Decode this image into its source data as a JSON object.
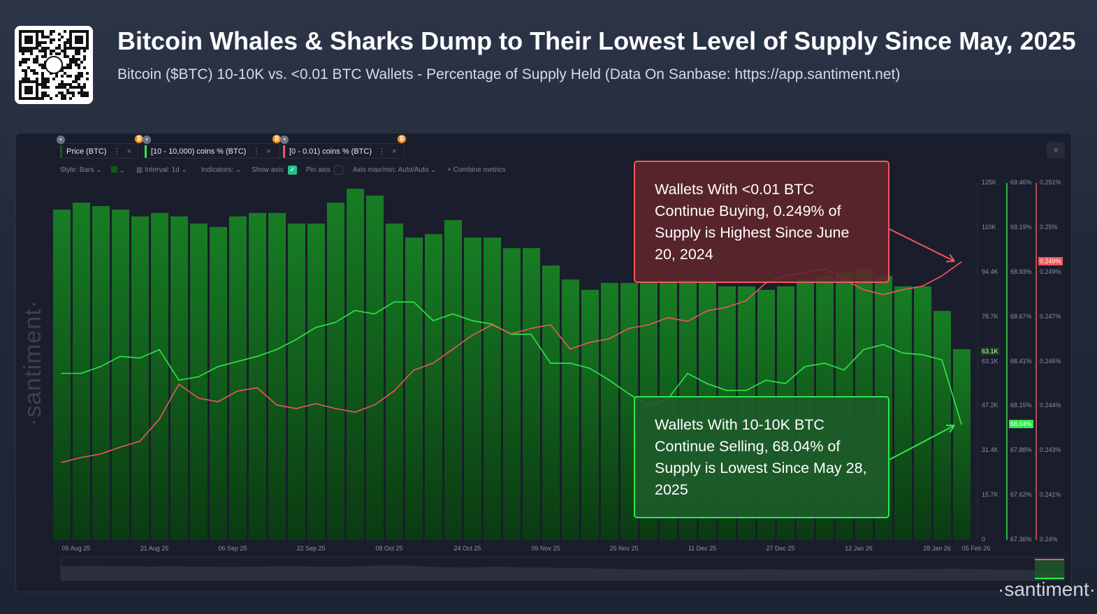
{
  "header": {
    "title": "Bitcoin Whales & Sharks Dump to Their Lowest Level of Supply Since May, 2025",
    "subtitle": "Bitcoin ($BTC) 10-10K vs. <0.01 BTC Wallets - Percentage of Supply Held (Data On Sanbase: https://app.santiment.net)"
  },
  "metric_tabs": [
    {
      "label": "Price (BTC)",
      "color": "#0f5a1a"
    },
    {
      "label": "[10 - 10,000) coins % (BTC)",
      "color": "#2ee84a"
    },
    {
      "label": "[0 - 0.01) coins % (BTC)",
      "color": "#f0585a"
    }
  ],
  "toolbar": {
    "style": "Style: Bars",
    "interval": "Interval: 1d",
    "indicators": "Indicators:",
    "show_axis": "Show axis",
    "show_axis_checked": true,
    "pin_axis": "Pin axis",
    "pin_axis_checked": false,
    "axis_minmax": "Axis max/min: Auto/Auto",
    "combine": "+ Combine metrics"
  },
  "watermark": "·santiment·",
  "watermark_br": "·santiment·",
  "annotations": [
    {
      "text": "Wallets With <0.01 BTC Continue Buying, 0.249% of Supply is Highest Since June 20, 2024",
      "color": "#f0585a"
    },
    {
      "text": "Wallets With 10-10K BTC Continue Selling, 68.04% of Supply is Lowest Since May 28, 2025",
      "color": "#2ee84a"
    }
  ],
  "chart_data": {
    "type": "bar+line",
    "x_ticks": [
      "05 Aug 25",
      "21 Aug 25",
      "06 Sep 25",
      "22 Sep 25",
      "08 Oct 25",
      "24 Oct 25",
      "09 Nov 25",
      "25 Nov 25",
      "11 Dec 25",
      "27 Dec 25",
      "12 Jan 26",
      "28 Jan 26",
      "05 Feb 26"
    ],
    "x_tick_dates": [
      "2025-08-05",
      "2025-08-21",
      "2025-09-06",
      "2025-09-22",
      "2025-10-08",
      "2025-10-24",
      "2025-11-09",
      "2025-11-25",
      "2025-12-11",
      "2025-12-27",
      "2026-01-12",
      "2026-01-28",
      "2026-02-05"
    ],
    "x": [
      "2025-08-02",
      "2025-08-06",
      "2025-08-10",
      "2025-08-14",
      "2025-08-18",
      "2025-08-22",
      "2025-08-26",
      "2025-08-30",
      "2025-09-03",
      "2025-09-07",
      "2025-09-11",
      "2025-09-15",
      "2025-09-19",
      "2025-09-23",
      "2025-09-27",
      "2025-10-01",
      "2025-10-05",
      "2025-10-09",
      "2025-10-13",
      "2025-10-17",
      "2025-10-21",
      "2025-10-25",
      "2025-10-29",
      "2025-11-02",
      "2025-11-06",
      "2025-11-10",
      "2025-11-14",
      "2025-11-18",
      "2025-11-22",
      "2025-11-26",
      "2025-11-30",
      "2025-12-04",
      "2025-12-08",
      "2025-12-12",
      "2025-12-16",
      "2025-12-20",
      "2025-12-24",
      "2025-12-28",
      "2026-01-01",
      "2026-01-05",
      "2026-01-09",
      "2026-01-13",
      "2026-01-17",
      "2026-01-21",
      "2026-01-25",
      "2026-01-29",
      "2026-02-02"
    ],
    "series": [
      {
        "name": "Price (BTC)",
        "type": "bar",
        "axis": "price",
        "color": "#137a22",
        "values": [
          115.7,
          118.1,
          116.9,
          115.7,
          113.3,
          114.5,
          113.3,
          110.8,
          109.6,
          113.3,
          114.5,
          114.5,
          110.8,
          110.8,
          118.1,
          123.0,
          120.6,
          110.8,
          105.9,
          107.1,
          112.0,
          105.9,
          105.9,
          102.2,
          102.2,
          96.1,
          91.2,
          87.6,
          90.0,
          90.0,
          90.0,
          90.0,
          91.2,
          90.0,
          88.8,
          88.8,
          87.6,
          88.8,
          91.2,
          92.5,
          93.7,
          94.9,
          92.5,
          88.8,
          88.8,
          80.2,
          66.8
        ]
      },
      {
        "name": "[10 - 10,000) coins % (BTC)",
        "type": "line",
        "axis": "whales",
        "color": "#2ee84a",
        "values": [
          68.34,
          68.34,
          68.38,
          68.44,
          68.43,
          68.48,
          68.3,
          68.32,
          68.38,
          68.41,
          68.44,
          68.48,
          68.54,
          68.61,
          68.64,
          68.71,
          68.69,
          68.76,
          68.76,
          68.65,
          68.69,
          68.65,
          68.63,
          68.57,
          68.57,
          68.4,
          68.4,
          68.37,
          68.3,
          68.22,
          68.15,
          68.19,
          68.34,
          68.28,
          68.24,
          68.24,
          68.3,
          68.28,
          68.38,
          68.4,
          68.36,
          68.48,
          68.51,
          68.46,
          68.45,
          68.42,
          68.04
        ]
      },
      {
        "name": "[0 - 0.01) coins % (BTC)",
        "type": "line",
        "axis": "shrimp",
        "color": "#f0585a",
        "values": [
          0.24239,
          0.24254,
          0.24265,
          0.24286,
          0.24304,
          0.24372,
          0.2448,
          0.24437,
          0.24426,
          0.24459,
          0.24469,
          0.24416,
          0.24405,
          0.2442,
          0.24405,
          0.24394,
          0.24416,
          0.24459,
          0.24523,
          0.24545,
          0.24588,
          0.24631,
          0.24663,
          0.24635,
          0.24652,
          0.24663,
          0.24588,
          0.24609,
          0.2462,
          0.24652,
          0.24663,
          0.24685,
          0.24674,
          0.24706,
          0.24717,
          0.24738,
          0.24792,
          0.24814,
          0.24825,
          0.24835,
          0.24803,
          0.24771,
          0.24756,
          0.24771,
          0.24782,
          0.24814,
          0.24857
        ]
      }
    ],
    "axes": {
      "price": {
        "range": [
          0,
          125000
        ],
        "ticks": [
          "125K",
          "110K",
          "94.4K",
          "78.7K",
          "63.1K",
          "47.2K",
          "31.4K",
          "15.7K",
          "0"
        ],
        "highlight": "63.1K",
        "highlight_value": 63100
      },
      "whales": {
        "range": [
          67.36,
          69.46
        ],
        "ticks": [
          "69.46%",
          "69.19%",
          "68.93%",
          "68.67%",
          "68.41%",
          "68.15%",
          "67.88%",
          "67.62%",
          "67.36%"
        ],
        "highlight": "68.04%",
        "highlight_value": 68.04
      },
      "shrimp": {
        "range": [
          0.24,
          0.251
        ],
        "ticks": [
          "0.251%",
          "0.25%",
          "0.249%",
          "0.247%",
          "0.246%",
          "0.244%",
          "0.243%",
          "0.241%",
          "0.24%"
        ],
        "highlight": "0.249%",
        "highlight_value": 0.2494
      }
    },
    "grid": false
  }
}
